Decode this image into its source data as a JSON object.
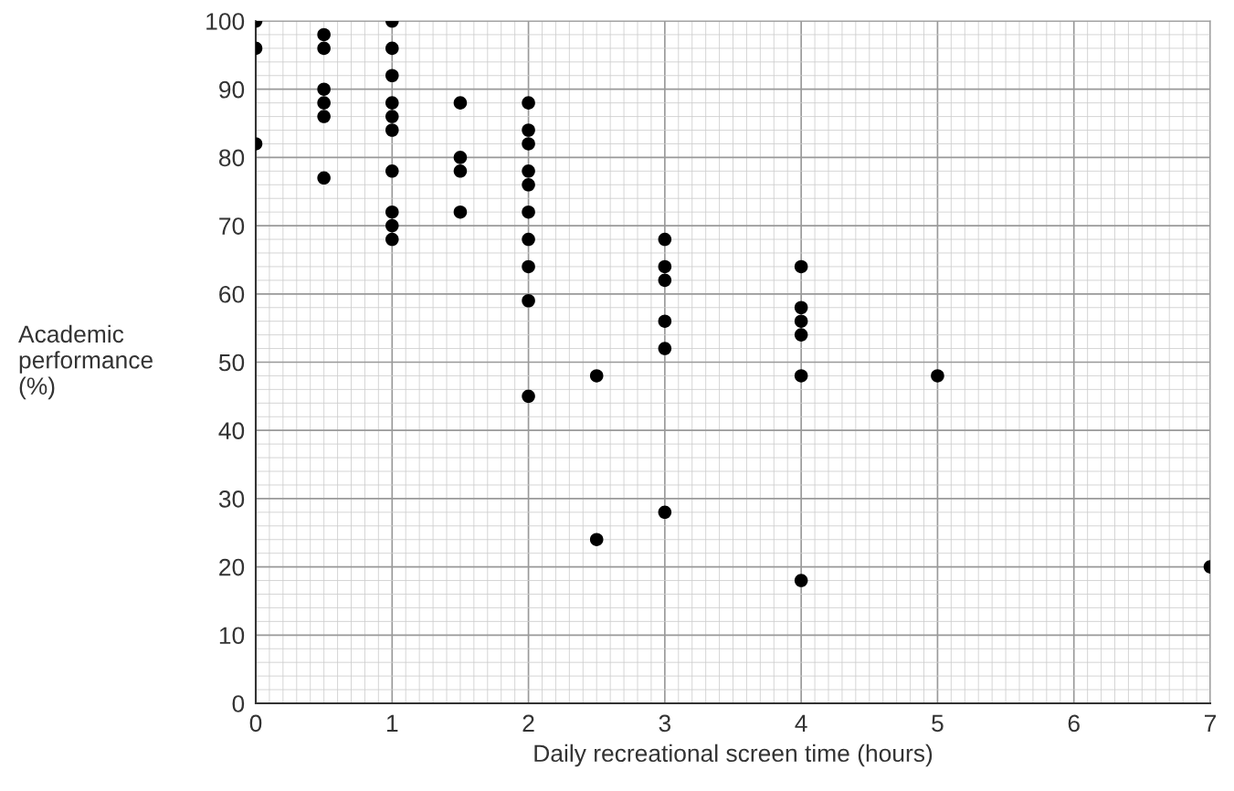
{
  "chart_data": {
    "type": "scatter",
    "xlabel": "Daily recreational screen time (hours)",
    "ylabel": "Academic\nperformance\n(%)",
    "x": [
      0,
      0,
      0,
      0.5,
      0.5,
      0.5,
      0.5,
      0.5,
      0.5,
      1,
      1,
      1,
      1,
      1,
      1,
      1,
      1,
      1,
      1,
      1.5,
      1.5,
      1.5,
      1.5,
      2,
      2,
      2,
      2,
      2,
      2,
      2,
      2,
      2,
      2,
      2.5,
      2.5,
      3,
      3,
      3,
      3,
      3,
      3,
      4,
      4,
      4,
      4,
      4,
      4,
      5,
      7
    ],
    "series": [
      {
        "color": "#000000",
        "values": [
          100,
          96,
          82,
          98,
          96,
          90,
          88,
          86,
          77,
          100,
          96,
          92,
          88,
          86,
          84,
          78,
          72,
          70,
          68,
          88,
          80,
          78,
          72,
          88,
          84,
          82,
          78,
          76,
          72,
          68,
          64,
          59,
          45,
          48,
          24,
          68,
          64,
          62,
          56,
          52,
          28,
          64,
          58,
          56,
          54,
          48,
          18,
          48,
          20
        ]
      }
    ],
    "xlim": [
      0,
      7
    ],
    "xticks": [
      0,
      1,
      2,
      3,
      4,
      5,
      6,
      7
    ],
    "ylim": [
      0,
      100
    ],
    "yticks": [
      0,
      10,
      20,
      30,
      40,
      50,
      60,
      70,
      80,
      90,
      100
    ],
    "grid": true,
    "marker": "circle"
  }
}
